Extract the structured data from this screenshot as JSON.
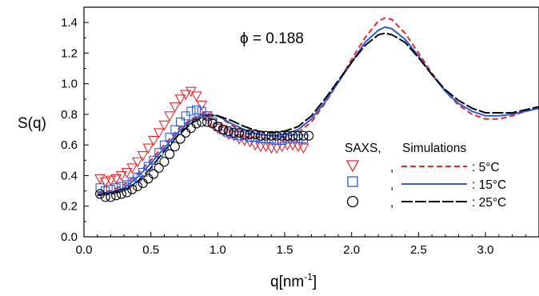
{
  "chart_data": {
    "type": "scatter",
    "xlabel": "q[nm",
    "xlabel_sup": "-1",
    "xlabel_close": "]",
    "ylabel": "S(q)",
    "annotation": "ϕ = 0.188",
    "xlim": [
      0.0,
      3.4
    ],
    "ylim": [
      0.0,
      1.5
    ],
    "xticks": [
      0.0,
      0.5,
      1.0,
      1.5,
      2.0,
      2.5,
      3.0
    ],
    "xtick_labels": [
      "0.0",
      "0.5",
      "1.0",
      "1.5",
      "2.0",
      "2.5",
      "3.0"
    ],
    "yticks": [
      0.0,
      0.2,
      0.4,
      0.6,
      0.8,
      1.0,
      1.2,
      1.4
    ],
    "ytick_labels": [
      "0.0",
      "0.2",
      "0.4",
      "0.6",
      "0.8",
      "1.0",
      "1.2",
      "1.4"
    ],
    "legend": {
      "header_saxs": "SAXS,",
      "header_sim": "Simulations",
      "placement": "center-right",
      "entries": [
        {
          "separator": ",",
          "label": ":  5°C"
        },
        {
          "separator": ",",
          "label": ":  15°C"
        },
        {
          "separator": ",",
          "label": ":  25°C"
        }
      ]
    },
    "colors": {
      "5C": "#e8262a",
      "15C": "#2a5bd7",
      "25C": "#000000"
    },
    "series": [
      {
        "kind": "SAXS",
        "temperature": "5°C",
        "marker": "triangle-down",
        "color": "#e8262a",
        "x": [
          0.12,
          0.16,
          0.2,
          0.24,
          0.28,
          0.32,
          0.36,
          0.4,
          0.44,
          0.48,
          0.52,
          0.56,
          0.6,
          0.64,
          0.68,
          0.72,
          0.76,
          0.8,
          0.84,
          0.88,
          0.92,
          0.96,
          1.0,
          1.04,
          1.08,
          1.12,
          1.16,
          1.2,
          1.24,
          1.28,
          1.32,
          1.36,
          1.4,
          1.44,
          1.48,
          1.52,
          1.56,
          1.6,
          1.64
        ],
        "y": [
          0.38,
          0.36,
          0.37,
          0.38,
          0.4,
          0.42,
          0.45,
          0.49,
          0.53,
          0.58,
          0.63,
          0.68,
          0.73,
          0.79,
          0.85,
          0.9,
          0.93,
          0.95,
          0.92,
          0.86,
          0.79,
          0.74,
          0.71,
          0.69,
          0.67,
          0.66,
          0.64,
          0.63,
          0.62,
          0.6,
          0.59,
          0.59,
          0.58,
          0.58,
          0.59,
          0.6,
          0.6,
          0.59,
          0.58
        ]
      },
      {
        "kind": "SAXS",
        "temperature": "15°C",
        "marker": "square",
        "color": "#2a5bd7",
        "x": [
          0.12,
          0.16,
          0.2,
          0.24,
          0.28,
          0.32,
          0.36,
          0.4,
          0.44,
          0.48,
          0.52,
          0.56,
          0.6,
          0.64,
          0.68,
          0.72,
          0.76,
          0.8,
          0.84,
          0.88,
          0.92,
          0.96,
          1.0,
          1.04,
          1.08,
          1.12,
          1.16,
          1.2,
          1.24,
          1.28,
          1.32,
          1.36,
          1.4,
          1.44,
          1.48,
          1.52,
          1.56,
          1.6,
          1.64
        ],
        "y": [
          0.32,
          0.3,
          0.31,
          0.32,
          0.33,
          0.34,
          0.36,
          0.39,
          0.42,
          0.46,
          0.5,
          0.55,
          0.6,
          0.65,
          0.7,
          0.75,
          0.79,
          0.82,
          0.83,
          0.82,
          0.79,
          0.75,
          0.72,
          0.7,
          0.68,
          0.67,
          0.66,
          0.66,
          0.65,
          0.65,
          0.64,
          0.64,
          0.64,
          0.63,
          0.63,
          0.64,
          0.64,
          0.64,
          0.64
        ]
      },
      {
        "kind": "SAXS",
        "temperature": "25°C",
        "marker": "circle",
        "color": "#000000",
        "x": [
          0.12,
          0.16,
          0.2,
          0.24,
          0.28,
          0.32,
          0.36,
          0.4,
          0.44,
          0.48,
          0.52,
          0.56,
          0.6,
          0.64,
          0.68,
          0.72,
          0.76,
          0.8,
          0.84,
          0.88,
          0.92,
          0.96,
          1.0,
          1.04,
          1.08,
          1.12,
          1.16,
          1.2,
          1.24,
          1.28,
          1.32,
          1.36,
          1.4,
          1.44,
          1.48,
          1.52,
          1.56,
          1.6,
          1.64,
          1.68
        ],
        "y": [
          0.28,
          0.26,
          0.26,
          0.27,
          0.28,
          0.29,
          0.31,
          0.33,
          0.35,
          0.38,
          0.41,
          0.45,
          0.49,
          0.54,
          0.59,
          0.64,
          0.68,
          0.71,
          0.74,
          0.75,
          0.75,
          0.74,
          0.72,
          0.7,
          0.69,
          0.68,
          0.68,
          0.67,
          0.67,
          0.67,
          0.66,
          0.66,
          0.66,
          0.66,
          0.66,
          0.66,
          0.66,
          0.66,
          0.66,
          0.66
        ]
      },
      {
        "kind": "Simulations",
        "temperature": "5°C",
        "line": "dashed",
        "color": "#e8262a",
        "x": [
          0.1,
          0.2,
          0.3,
          0.4,
          0.5,
          0.6,
          0.7,
          0.8,
          0.9,
          1.0,
          1.1,
          1.2,
          1.3,
          1.4,
          1.5,
          1.6,
          1.7,
          1.8,
          1.9,
          2.0,
          2.1,
          2.2,
          2.25,
          2.3,
          2.4,
          2.5,
          2.6,
          2.7,
          2.8,
          2.9,
          3.0,
          3.1,
          3.2,
          3.3,
          3.4
        ],
        "y": [
          0.29,
          0.3,
          0.34,
          0.41,
          0.5,
          0.6,
          0.7,
          0.77,
          0.81,
          0.79,
          0.73,
          0.68,
          0.65,
          0.64,
          0.65,
          0.68,
          0.75,
          0.87,
          1.01,
          1.16,
          1.3,
          1.41,
          1.43,
          1.42,
          1.33,
          1.2,
          1.07,
          0.95,
          0.86,
          0.8,
          0.77,
          0.77,
          0.79,
          0.82,
          0.84
        ]
      },
      {
        "kind": "Simulations",
        "temperature": "15°C",
        "line": "solid",
        "color": "#2a5bd7",
        "x": [
          0.1,
          0.2,
          0.3,
          0.4,
          0.5,
          0.6,
          0.7,
          0.8,
          0.9,
          1.0,
          1.1,
          1.2,
          1.3,
          1.4,
          1.5,
          1.6,
          1.7,
          1.8,
          1.9,
          2.0,
          2.1,
          2.2,
          2.25,
          2.3,
          2.4,
          2.5,
          2.6,
          2.7,
          2.8,
          2.9,
          3.0,
          3.1,
          3.2,
          3.3,
          3.4
        ],
        "y": [
          0.28,
          0.29,
          0.32,
          0.39,
          0.48,
          0.58,
          0.68,
          0.76,
          0.8,
          0.79,
          0.74,
          0.7,
          0.67,
          0.66,
          0.67,
          0.7,
          0.77,
          0.88,
          1.01,
          1.14,
          1.27,
          1.35,
          1.37,
          1.36,
          1.29,
          1.18,
          1.06,
          0.95,
          0.87,
          0.82,
          0.79,
          0.79,
          0.8,
          0.82,
          0.84
        ]
      },
      {
        "kind": "Simulations",
        "temperature": "25°C",
        "line": "long-dash",
        "color": "#000000",
        "x": [
          0.1,
          0.2,
          0.3,
          0.4,
          0.5,
          0.6,
          0.7,
          0.8,
          0.9,
          1.0,
          1.1,
          1.2,
          1.3,
          1.4,
          1.5,
          1.6,
          1.7,
          1.8,
          1.9,
          2.0,
          2.1,
          2.2,
          2.25,
          2.3,
          2.4,
          2.5,
          2.6,
          2.7,
          2.8,
          2.9,
          3.0,
          3.1,
          3.2,
          3.3,
          3.4
        ],
        "y": [
          0.27,
          0.28,
          0.3,
          0.36,
          0.45,
          0.56,
          0.66,
          0.74,
          0.79,
          0.79,
          0.76,
          0.72,
          0.69,
          0.68,
          0.69,
          0.72,
          0.79,
          0.9,
          1.02,
          1.14,
          1.25,
          1.32,
          1.33,
          1.32,
          1.27,
          1.17,
          1.06,
          0.96,
          0.89,
          0.84,
          0.81,
          0.81,
          0.81,
          0.83,
          0.85
        ]
      }
    ]
  }
}
